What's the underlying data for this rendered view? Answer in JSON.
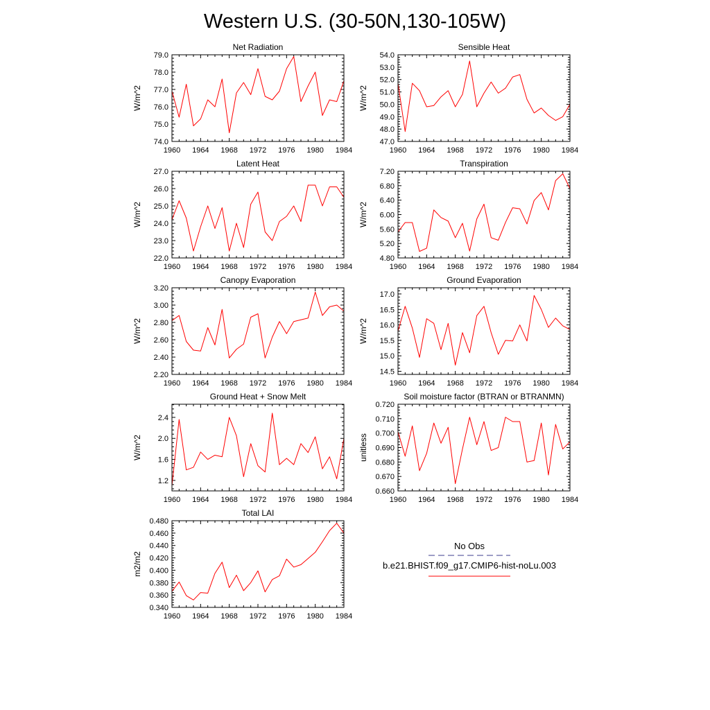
{
  "title": "Western U.S. (30-50N,130-105W)",
  "legend": {
    "entries": [
      {
        "label": "No Obs",
        "color": "#3b3b8c",
        "dash": true
      },
      {
        "label": "b.e21.BHIST.f09_g17.CMIP6-hist-noLu.003",
        "color": "#ff0000",
        "dash": false
      }
    ]
  },
  "chart_data": [
    {
      "type": "line",
      "title": "Net Radiation",
      "ylabel": "W/m^2",
      "x": [
        1960,
        1961,
        1962,
        1963,
        1964,
        1965,
        1966,
        1967,
        1968,
        1969,
        1970,
        1971,
        1972,
        1973,
        1974,
        1975,
        1976,
        1977,
        1978,
        1979,
        1980,
        1981,
        1982,
        1983,
        1984
      ],
      "xticks": [
        "1960",
        "1964",
        "1968",
        "1972",
        "1976",
        "1980",
        "1984"
      ],
      "xlim": [
        1960,
        1984
      ],
      "ylim": [
        74.0,
        79.0
      ],
      "yticks": [
        "74.0",
        "75.0",
        "76.0",
        "77.0",
        "78.0",
        "79.0"
      ],
      "series": [
        {
          "color": "#ff0000",
          "values": [
            76.9,
            75.4,
            77.3,
            74.9,
            75.3,
            76.4,
            76.0,
            77.6,
            74.5,
            76.8,
            77.4,
            76.7,
            78.2,
            76.6,
            76.4,
            76.9,
            78.2,
            78.9,
            76.3,
            77.2,
            78.0,
            75.5,
            76.4,
            76.3,
            77.5
          ]
        }
      ]
    },
    {
      "type": "line",
      "title": "Sensible Heat",
      "ylabel": "W/m^2",
      "x": [
        1960,
        1961,
        1962,
        1963,
        1964,
        1965,
        1966,
        1967,
        1968,
        1969,
        1970,
        1971,
        1972,
        1973,
        1974,
        1975,
        1976,
        1977,
        1978,
        1979,
        1980,
        1981,
        1982,
        1983,
        1984
      ],
      "xticks": [
        "1960",
        "1964",
        "1968",
        "1972",
        "1976",
        "1980",
        "1984"
      ],
      "xlim": [
        1960,
        1984
      ],
      "ylim": [
        47.0,
        54.0
      ],
      "yticks": [
        "47.0",
        "48.0",
        "49.0",
        "50.0",
        "51.0",
        "52.0",
        "53.0",
        "54.0"
      ],
      "series": [
        {
          "color": "#ff0000",
          "values": [
            51.7,
            47.8,
            51.7,
            51.1,
            49.8,
            49.9,
            50.6,
            51.1,
            49.8,
            50.8,
            53.5,
            49.8,
            50.9,
            51.8,
            50.9,
            51.3,
            52.2,
            52.4,
            50.4,
            49.3,
            49.7,
            49.1,
            48.7,
            49.0,
            50.0
          ]
        }
      ]
    },
    {
      "type": "line",
      "title": "Latent Heat",
      "ylabel": "W/m^2",
      "x": [
        1960,
        1961,
        1962,
        1963,
        1964,
        1965,
        1966,
        1967,
        1968,
        1969,
        1970,
        1971,
        1972,
        1973,
        1974,
        1975,
        1976,
        1977,
        1978,
        1979,
        1980,
        1981,
        1982,
        1983,
        1984
      ],
      "xticks": [
        "1960",
        "1964",
        "1968",
        "1972",
        "1976",
        "1980",
        "1984"
      ],
      "xlim": [
        1960,
        1984
      ],
      "ylim": [
        22.0,
        27.0
      ],
      "yticks": [
        "22.0",
        "23.0",
        "24.0",
        "25.0",
        "26.0",
        "27.0"
      ],
      "series": [
        {
          "color": "#ff0000",
          "values": [
            24.2,
            25.3,
            24.3,
            22.4,
            23.8,
            25.0,
            23.7,
            24.9,
            22.4,
            24.0,
            22.6,
            25.1,
            25.8,
            23.5,
            23.0,
            24.1,
            24.4,
            25.0,
            24.1,
            26.2,
            26.2,
            25.0,
            26.1,
            26.1,
            25.5
          ]
        }
      ]
    },
    {
      "type": "line",
      "title": "Transpiration",
      "ylabel": "W/m^2",
      "x": [
        1960,
        1961,
        1962,
        1963,
        1964,
        1965,
        1966,
        1967,
        1968,
        1969,
        1970,
        1971,
        1972,
        1973,
        1974,
        1975,
        1976,
        1977,
        1978,
        1979,
        1980,
        1981,
        1982,
        1983,
        1984
      ],
      "xticks": [
        "1960",
        "1964",
        "1968",
        "1972",
        "1976",
        "1980",
        "1984"
      ],
      "xlim": [
        1960,
        1984
      ],
      "ylim": [
        4.8,
        7.2
      ],
      "yticks": [
        "4.80",
        "5.20",
        "5.60",
        "6.00",
        "6.40",
        "6.80",
        "7.20"
      ],
      "series": [
        {
          "color": "#ff0000",
          "values": [
            5.52,
            5.78,
            5.78,
            4.98,
            5.07,
            6.13,
            5.92,
            5.82,
            5.36,
            5.76,
            4.99,
            5.88,
            6.29,
            5.36,
            5.29,
            5.78,
            6.19,
            6.16,
            5.74,
            6.39,
            6.61,
            6.13,
            6.94,
            7.13,
            6.72
          ]
        }
      ]
    },
    {
      "type": "line",
      "title": "Canopy Evaporation",
      "ylabel": "W/m^2",
      "x": [
        1960,
        1961,
        1962,
        1963,
        1964,
        1965,
        1966,
        1967,
        1968,
        1969,
        1970,
        1971,
        1972,
        1973,
        1974,
        1975,
        1976,
        1977,
        1978,
        1979,
        1980,
        1981,
        1982,
        1983,
        1984
      ],
      "xticks": [
        "1960",
        "1964",
        "1968",
        "1972",
        "1976",
        "1980",
        "1984"
      ],
      "xlim": [
        1960,
        1984
      ],
      "ylim": [
        2.2,
        3.2
      ],
      "yticks": [
        "2.20",
        "2.40",
        "2.60",
        "2.80",
        "3.00",
        "3.20"
      ],
      "series": [
        {
          "color": "#ff0000",
          "values": [
            2.82,
            2.88,
            2.58,
            2.48,
            2.47,
            2.74,
            2.54,
            2.95,
            2.39,
            2.49,
            2.55,
            2.86,
            2.9,
            2.39,
            2.63,
            2.81,
            2.67,
            2.81,
            2.83,
            2.85,
            3.15,
            2.88,
            2.98,
            3.0,
            2.93
          ]
        }
      ]
    },
    {
      "type": "line",
      "title": "Ground Evaporation",
      "ylabel": "W/m^2",
      "x": [
        1960,
        1961,
        1962,
        1963,
        1964,
        1965,
        1966,
        1967,
        1968,
        1969,
        1970,
        1971,
        1972,
        1973,
        1974,
        1975,
        1976,
        1977,
        1978,
        1979,
        1980,
        1981,
        1982,
        1983,
        1984
      ],
      "xticks": [
        "1960",
        "1964",
        "1968",
        "1972",
        "1976",
        "1980",
        "1984"
      ],
      "xlim": [
        1960,
        1984
      ],
      "ylim": [
        14.4,
        17.2
      ],
      "yticks": [
        "14.5",
        "15.0",
        "15.5",
        "16.0",
        "16.5",
        "17.0"
      ],
      "series": [
        {
          "color": "#ff0000",
          "values": [
            15.8,
            16.6,
            15.9,
            14.95,
            16.2,
            16.05,
            15.2,
            16.05,
            14.7,
            15.75,
            15.1,
            16.3,
            16.6,
            15.75,
            15.05,
            15.5,
            15.48,
            16.0,
            15.48,
            16.95,
            16.5,
            15.92,
            16.22,
            15.97,
            15.85
          ]
        }
      ]
    },
    {
      "type": "line",
      "title": "Ground Heat + Snow Melt",
      "ylabel": "W/m^2",
      "x": [
        1960,
        1961,
        1962,
        1963,
        1964,
        1965,
        1966,
        1967,
        1968,
        1969,
        1970,
        1971,
        1972,
        1973,
        1974,
        1975,
        1976,
        1977,
        1978,
        1979,
        1980,
        1981,
        1982,
        1983,
        1984
      ],
      "xticks": [
        "1960",
        "1964",
        "1968",
        "1972",
        "1976",
        "1980",
        "1984"
      ],
      "xlim": [
        1960,
        1984
      ],
      "ylim": [
        1.0,
        2.65
      ],
      "yticks": [
        "1.2",
        "1.6",
        "2.0",
        "2.4"
      ],
      "series": [
        {
          "color": "#ff0000",
          "values": [
            1.1,
            2.36,
            1.4,
            1.45,
            1.74,
            1.6,
            1.68,
            1.65,
            2.4,
            2.05,
            1.27,
            1.9,
            1.48,
            1.36,
            2.48,
            1.5,
            1.62,
            1.5,
            1.9,
            1.73,
            2.03,
            1.42,
            1.65,
            1.23,
            2.0
          ]
        }
      ]
    },
    {
      "type": "line",
      "title": "Soil moisture factor (BTRAN or BTRANMN)",
      "ylabel": "unitless",
      "x": [
        1960,
        1961,
        1962,
        1963,
        1964,
        1965,
        1966,
        1967,
        1968,
        1969,
        1970,
        1971,
        1972,
        1973,
        1974,
        1975,
        1976,
        1977,
        1978,
        1979,
        1980,
        1981,
        1982,
        1983,
        1984
      ],
      "xticks": [
        "1960",
        "1964",
        "1968",
        "1972",
        "1976",
        "1980",
        "1984"
      ],
      "xlim": [
        1960,
        1984
      ],
      "ylim": [
        0.66,
        0.72
      ],
      "yticks": [
        "0.660",
        "0.670",
        "0.680",
        "0.690",
        "0.700",
        "0.710",
        "0.720"
      ],
      "series": [
        {
          "color": "#ff0000",
          "values": [
            0.701,
            0.684,
            0.705,
            0.674,
            0.686,
            0.707,
            0.693,
            0.704,
            0.665,
            0.689,
            0.711,
            0.692,
            0.708,
            0.688,
            0.69,
            0.711,
            0.708,
            0.708,
            0.68,
            0.681,
            0.707,
            0.671,
            0.706,
            0.689,
            0.694
          ]
        }
      ]
    },
    {
      "type": "line",
      "title": "Total LAI",
      "ylabel": "m2/m2",
      "x": [
        1960,
        1961,
        1962,
        1963,
        1964,
        1965,
        1966,
        1967,
        1968,
        1969,
        1970,
        1971,
        1972,
        1973,
        1974,
        1975,
        1976,
        1977,
        1978,
        1979,
        1980,
        1981,
        1982,
        1983,
        1984
      ],
      "xticks": [
        "1960",
        "1964",
        "1968",
        "1972",
        "1976",
        "1980",
        "1984"
      ],
      "xlim": [
        1960,
        1984
      ],
      "ylim": [
        0.34,
        0.48
      ],
      "yticks": [
        "0.340",
        "0.360",
        "0.380",
        "0.400",
        "0.420",
        "0.440",
        "0.460",
        "0.480"
      ],
      "series": [
        {
          "color": "#ff0000",
          "values": [
            0.366,
            0.381,
            0.359,
            0.352,
            0.364,
            0.363,
            0.395,
            0.413,
            0.372,
            0.392,
            0.367,
            0.38,
            0.399,
            0.365,
            0.385,
            0.391,
            0.418,
            0.405,
            0.409,
            0.419,
            0.429,
            0.446,
            0.464,
            0.476,
            0.46
          ]
        }
      ]
    }
  ]
}
